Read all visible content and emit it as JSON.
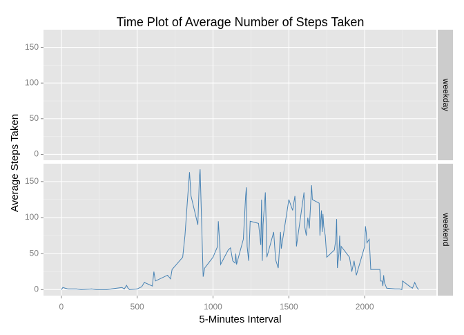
{
  "chart_data": {
    "type": "line",
    "title": "Time Plot of Average Number of Steps Taken",
    "x_label": "5-Minutes Interval",
    "y_label": "Average Steps Taken",
    "xlim": [
      -117.75,
      2472.75
    ],
    "xticks": [
      0,
      500,
      1000,
      1500,
      2000
    ],
    "ylim": [
      -8.3,
      174.8
    ],
    "yticks": [
      0,
      50,
      100,
      150
    ],
    "grid": true,
    "color": "#4682b4",
    "facets": [
      {
        "label": "weekday",
        "x": [],
        "values": []
      },
      {
        "label": "weekend",
        "x": [
          0,
          10,
          25,
          45,
          100,
          130,
          200,
          230,
          300,
          330,
          400,
          415,
          430,
          440,
          450,
          500,
          530,
          547,
          600,
          610,
          620,
          700,
          720,
          730,
          800,
          815,
          830,
          845,
          855,
          900,
          910,
          915,
          935,
          945,
          1000,
          1030,
          1035,
          1045,
          1050,
          1100,
          1115,
          1130,
          1145,
          1150,
          1155,
          1200,
          1215,
          1220,
          1225,
          1235,
          1245,
          1300,
          1315,
          1320,
          1325,
          1330,
          1345,
          1350,
          1355,
          1400,
          1410,
          1415,
          1430,
          1445,
          1450,
          1500,
          1525,
          1540,
          1545,
          1550,
          1600,
          1605,
          1615,
          1625,
          1635,
          1650,
          1655,
          1700,
          1705,
          1710,
          1715,
          1720,
          1725,
          1730,
          1740,
          1750,
          1800,
          1810,
          1815,
          1820,
          1830,
          1835,
          1840,
          1845,
          1900,
          1915,
          1930,
          1945,
          2000,
          2005,
          2010,
          2015,
          2030,
          2035,
          2040,
          2055,
          2100,
          2105,
          2115,
          2120,
          2125,
          2130,
          2145,
          2200,
          2230,
          2245,
          2250,
          2300,
          2315,
          2330,
          2345,
          2355
        ],
        "values": [
          0,
          3,
          2,
          1,
          1,
          0,
          1,
          0,
          0,
          1,
          3,
          1,
          6,
          2,
          0,
          1,
          4,
          10,
          5,
          25,
          12,
          20,
          15,
          28,
          45,
          75,
          120,
          163,
          130,
          90,
          155,
          167,
          18,
          30,
          45,
          60,
          95,
          60,
          35,
          55,
          58,
          40,
          37,
          50,
          35,
          70,
          130,
          142,
          60,
          40,
          95,
          92,
          62,
          125,
          40,
          90,
          135,
          95,
          45,
          80,
          50,
          40,
          30,
          80,
          57,
          125,
          110,
          130,
          105,
          60,
          135,
          87,
          75,
          100,
          85,
          145,
          125,
          120,
          75,
          95,
          110,
          80,
          105,
          88,
          75,
          45,
          55,
          70,
          98,
          30,
          50,
          75,
          40,
          60,
          45,
          25,
          40,
          20,
          60,
          88,
          80,
          65,
          70,
          50,
          28,
          28,
          28,
          12,
          12,
          5,
          20,
          10,
          2,
          1,
          1,
          0,
          12,
          4,
          2,
          10,
          3,
          0
        ]
      }
    ]
  }
}
